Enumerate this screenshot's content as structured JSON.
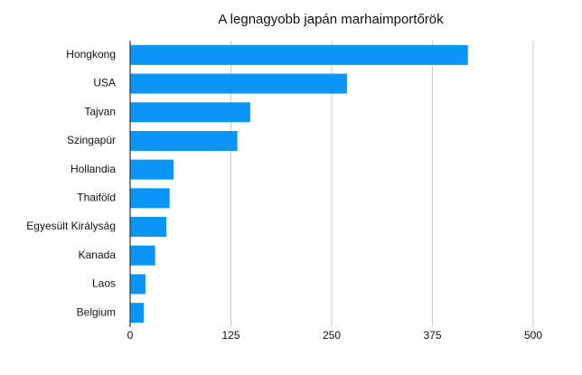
{
  "chart_data": {
    "type": "bar",
    "orientation": "horizontal",
    "title": "A legnagyobb japán marhaimportőrök",
    "categories": [
      "Hongkong",
      "USA",
      "Tajvan",
      "Szingapúr",
      "Hollandia",
      "Thaiföld",
      "Egyesült Királyság",
      "Kanada",
      "Laos",
      "Belgium"
    ],
    "values": [
      419,
      269,
      149,
      133,
      54,
      49,
      45,
      31,
      19,
      17
    ],
    "color": "#0996f6",
    "xlim": [
      0,
      500
    ],
    "xticks": [
      0,
      125,
      250,
      375,
      500
    ],
    "grid": true
  }
}
